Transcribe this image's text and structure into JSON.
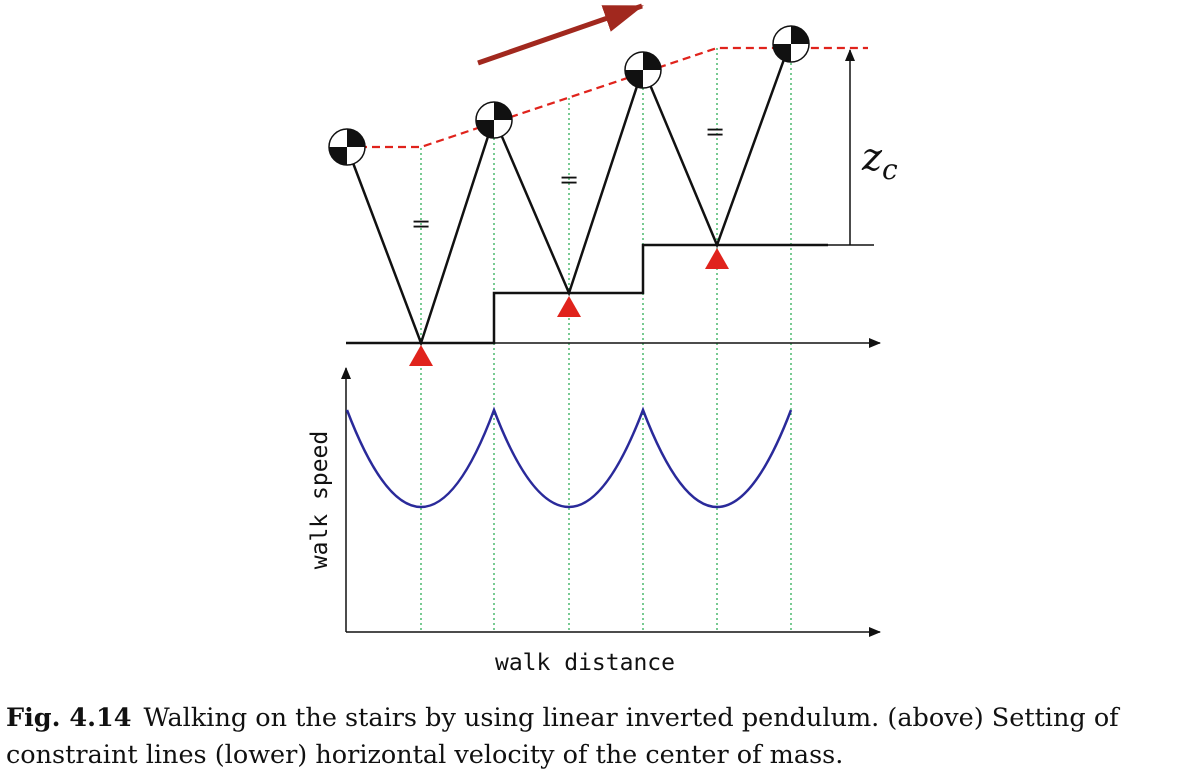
{
  "figure": {
    "equal_sign": "=",
    "zc_label": "z",
    "zc_subscript": "c",
    "y_axis_label": "walk speed",
    "x_axis_label": "walk distance",
    "colors": {
      "leg": "#111111",
      "constraint_line": "#e0231c",
      "support_triangle": "#e0231c",
      "direction_arrow": "#a1281e",
      "guide_line": "#1fa84a",
      "speed_curve": "#2a2a9a",
      "axis": "#111111"
    }
  },
  "caption": {
    "label": "Fig. 4.14",
    "text": "Walking on the stairs by using linear inverted pendulum. (above) Setting of constraint lines (lower) horizontal velocity of the center of mass."
  }
}
